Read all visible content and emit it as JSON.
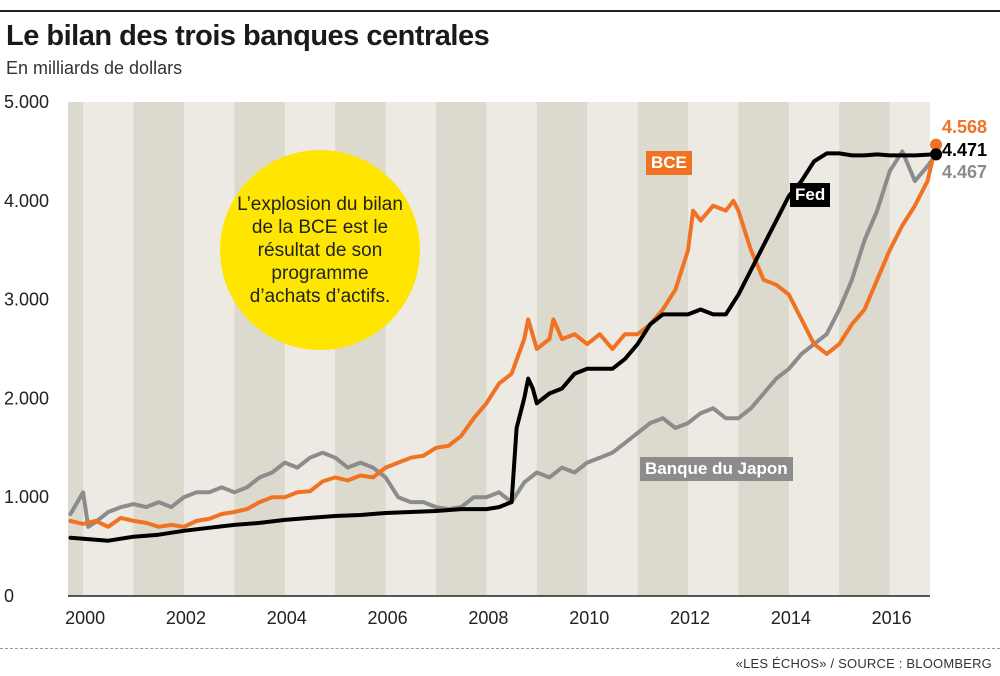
{
  "header": {
    "title": "Le bilan des trois banques centrales",
    "subtitle": "En milliards de dollars"
  },
  "callout": {
    "text": "L’explosion du bilan de la BCE est le résultat de son programme d’achats d’actifs."
  },
  "source": "«LES ÉCHOS» / SOURCE : BLOOMBERG",
  "colors": {
    "bce": "#f07223",
    "fed": "#000000",
    "bdj": "#8c8c8c",
    "callout": "#ffe600",
    "plot_bg_light": "#eceae3",
    "plot_bg_dark": "#dcd9ce"
  },
  "chart_data": {
    "type": "line",
    "title": "Le bilan des trois banques centrales",
    "subtitle": "En milliards de dollars",
    "xlabel": "",
    "ylabel": "",
    "xlim": [
      1999.7,
      2016.8
    ],
    "ylim": [
      0,
      5000
    ],
    "yticks": [
      "0",
      "1.000",
      "2.000",
      "3.000",
      "4.000",
      "5.000"
    ],
    "ytick_values": [
      0,
      1000,
      2000,
      3000,
      4000,
      5000
    ],
    "xticks": [
      "2000",
      "2002",
      "2004",
      "2006",
      "2008",
      "2010",
      "2012",
      "2014",
      "2016"
    ],
    "xtick_values": [
      2000,
      2002,
      2004,
      2006,
      2008,
      2010,
      2012,
      2014,
      2016
    ],
    "grid": false,
    "series": [
      {
        "key": "bce",
        "name": "BCE",
        "end_label": "4.568",
        "color": "#f07223",
        "points": [
          [
            1999.75,
            760
          ],
          [
            2000.0,
            730
          ],
          [
            2000.25,
            760
          ],
          [
            2000.5,
            700
          ],
          [
            2000.75,
            790
          ],
          [
            2001.0,
            760
          ],
          [
            2001.25,
            740
          ],
          [
            2001.5,
            700
          ],
          [
            2001.75,
            720
          ],
          [
            2002.0,
            700
          ],
          [
            2002.25,
            760
          ],
          [
            2002.5,
            780
          ],
          [
            2002.75,
            830
          ],
          [
            2003.0,
            850
          ],
          [
            2003.25,
            880
          ],
          [
            2003.5,
            950
          ],
          [
            2003.75,
            1000
          ],
          [
            2004.0,
            1000
          ],
          [
            2004.25,
            1050
          ],
          [
            2004.5,
            1060
          ],
          [
            2004.75,
            1160
          ],
          [
            2005.0,
            1200
          ],
          [
            2005.25,
            1170
          ],
          [
            2005.5,
            1220
          ],
          [
            2005.75,
            1200
          ],
          [
            2006.0,
            1300
          ],
          [
            2006.25,
            1350
          ],
          [
            2006.5,
            1400
          ],
          [
            2006.75,
            1420
          ],
          [
            2007.0,
            1500
          ],
          [
            2007.25,
            1520
          ],
          [
            2007.5,
            1620
          ],
          [
            2007.75,
            1800
          ],
          [
            2008.0,
            1950
          ],
          [
            2008.25,
            2150
          ],
          [
            2008.5,
            2250
          ],
          [
            2008.75,
            2600
          ],
          [
            2008.83,
            2800
          ],
          [
            2009.0,
            2500
          ],
          [
            2009.25,
            2600
          ],
          [
            2009.33,
            2800
          ],
          [
            2009.5,
            2600
          ],
          [
            2009.75,
            2650
          ],
          [
            2010.0,
            2550
          ],
          [
            2010.25,
            2650
          ],
          [
            2010.5,
            2500
          ],
          [
            2010.75,
            2650
          ],
          [
            2011.0,
            2650
          ],
          [
            2011.25,
            2750
          ],
          [
            2011.5,
            2900
          ],
          [
            2011.75,
            3100
          ],
          [
            2012.0,
            3500
          ],
          [
            2012.1,
            3900
          ],
          [
            2012.25,
            3800
          ],
          [
            2012.5,
            3950
          ],
          [
            2012.75,
            3900
          ],
          [
            2012.9,
            4000
          ],
          [
            2013.0,
            3900
          ],
          [
            2013.25,
            3500
          ],
          [
            2013.5,
            3200
          ],
          [
            2013.75,
            3150
          ],
          [
            2014.0,
            3050
          ],
          [
            2014.25,
            2800
          ],
          [
            2014.5,
            2550
          ],
          [
            2014.75,
            2450
          ],
          [
            2015.0,
            2550
          ],
          [
            2015.25,
            2750
          ],
          [
            2015.5,
            2900
          ],
          [
            2015.75,
            3200
          ],
          [
            2016.0,
            3500
          ],
          [
            2016.25,
            3750
          ],
          [
            2016.5,
            3950
          ],
          [
            2016.75,
            4200
          ],
          [
            2016.92,
            4568
          ]
        ]
      },
      {
        "key": "fed",
        "name": "Fed",
        "end_label": "4.471",
        "color": "#000000",
        "points": [
          [
            1999.75,
            590
          ],
          [
            2000.0,
            580
          ],
          [
            2000.25,
            570
          ],
          [
            2000.5,
            560
          ],
          [
            2000.75,
            580
          ],
          [
            2001.0,
            600
          ],
          [
            2001.5,
            620
          ],
          [
            2002.0,
            660
          ],
          [
            2002.5,
            690
          ],
          [
            2003.0,
            720
          ],
          [
            2003.5,
            740
          ],
          [
            2004.0,
            770
          ],
          [
            2004.5,
            790
          ],
          [
            2005.0,
            810
          ],
          [
            2005.5,
            820
          ],
          [
            2006.0,
            840
          ],
          [
            2006.5,
            850
          ],
          [
            2007.0,
            860
          ],
          [
            2007.5,
            880
          ],
          [
            2008.0,
            880
          ],
          [
            2008.25,
            900
          ],
          [
            2008.5,
            950
          ],
          [
            2008.6,
            1700
          ],
          [
            2008.75,
            2000
          ],
          [
            2008.83,
            2200
          ],
          [
            2008.92,
            2100
          ],
          [
            2009.0,
            1950
          ],
          [
            2009.25,
            2050
          ],
          [
            2009.5,
            2100
          ],
          [
            2009.75,
            2250
          ],
          [
            2010.0,
            2300
          ],
          [
            2010.25,
            2300
          ],
          [
            2010.5,
            2300
          ],
          [
            2010.75,
            2400
          ],
          [
            2011.0,
            2550
          ],
          [
            2011.25,
            2750
          ],
          [
            2011.5,
            2850
          ],
          [
            2011.75,
            2850
          ],
          [
            2012.0,
            2850
          ],
          [
            2012.25,
            2900
          ],
          [
            2012.5,
            2850
          ],
          [
            2012.75,
            2850
          ],
          [
            2013.0,
            3050
          ],
          [
            2013.25,
            3300
          ],
          [
            2013.5,
            3550
          ],
          [
            2013.75,
            3800
          ],
          [
            2014.0,
            4050
          ],
          [
            2014.25,
            4200
          ],
          [
            2014.5,
            4400
          ],
          [
            2014.75,
            4480
          ],
          [
            2015.0,
            4480
          ],
          [
            2015.25,
            4460
          ],
          [
            2015.5,
            4460
          ],
          [
            2015.75,
            4470
          ],
          [
            2016.0,
            4460
          ],
          [
            2016.25,
            4460
          ],
          [
            2016.5,
            4460
          ],
          [
            2016.92,
            4471
          ]
        ]
      },
      {
        "key": "bdj",
        "name": "Banque du Japon",
        "end_label": "4.467",
        "color": "#8c8c8c",
        "points": [
          [
            1999.75,
            830
          ],
          [
            2000.0,
            1050
          ],
          [
            2000.1,
            700
          ],
          [
            2000.25,
            750
          ],
          [
            2000.5,
            850
          ],
          [
            2000.75,
            900
          ],
          [
            2001.0,
            930
          ],
          [
            2001.25,
            900
          ],
          [
            2001.5,
            950
          ],
          [
            2001.75,
            900
          ],
          [
            2002.0,
            1000
          ],
          [
            2002.25,
            1050
          ],
          [
            2002.5,
            1050
          ],
          [
            2002.75,
            1100
          ],
          [
            2003.0,
            1050
          ],
          [
            2003.25,
            1100
          ],
          [
            2003.5,
            1200
          ],
          [
            2003.75,
            1250
          ],
          [
            2004.0,
            1350
          ],
          [
            2004.25,
            1300
          ],
          [
            2004.5,
            1400
          ],
          [
            2004.75,
            1450
          ],
          [
            2005.0,
            1400
          ],
          [
            2005.25,
            1300
          ],
          [
            2005.5,
            1350
          ],
          [
            2005.75,
            1300
          ],
          [
            2006.0,
            1200
          ],
          [
            2006.25,
            1000
          ],
          [
            2006.5,
            950
          ],
          [
            2006.75,
            950
          ],
          [
            2007.0,
            900
          ],
          [
            2007.25,
            880
          ],
          [
            2007.5,
            900
          ],
          [
            2007.75,
            1000
          ],
          [
            2008.0,
            1000
          ],
          [
            2008.25,
            1050
          ],
          [
            2008.5,
            950
          ],
          [
            2008.75,
            1150
          ],
          [
            2009.0,
            1250
          ],
          [
            2009.25,
            1200
          ],
          [
            2009.5,
            1300
          ],
          [
            2009.75,
            1250
          ],
          [
            2010.0,
            1350
          ],
          [
            2010.25,
            1400
          ],
          [
            2010.5,
            1450
          ],
          [
            2010.75,
            1550
          ],
          [
            2011.0,
            1650
          ],
          [
            2011.25,
            1750
          ],
          [
            2011.5,
            1800
          ],
          [
            2011.75,
            1700
          ],
          [
            2012.0,
            1750
          ],
          [
            2012.25,
            1850
          ],
          [
            2012.5,
            1900
          ],
          [
            2012.75,
            1800
          ],
          [
            2013.0,
            1800
          ],
          [
            2013.25,
            1900
          ],
          [
            2013.5,
            2050
          ],
          [
            2013.75,
            2200
          ],
          [
            2014.0,
            2300
          ],
          [
            2014.25,
            2450
          ],
          [
            2014.5,
            2550
          ],
          [
            2014.75,
            2650
          ],
          [
            2015.0,
            2900
          ],
          [
            2015.25,
            3200
          ],
          [
            2015.5,
            3600
          ],
          [
            2015.75,
            3900
          ],
          [
            2016.0,
            4300
          ],
          [
            2016.25,
            4500
          ],
          [
            2016.5,
            4200
          ],
          [
            2016.75,
            4350
          ],
          [
            2016.92,
            4467
          ]
        ]
      }
    ]
  }
}
